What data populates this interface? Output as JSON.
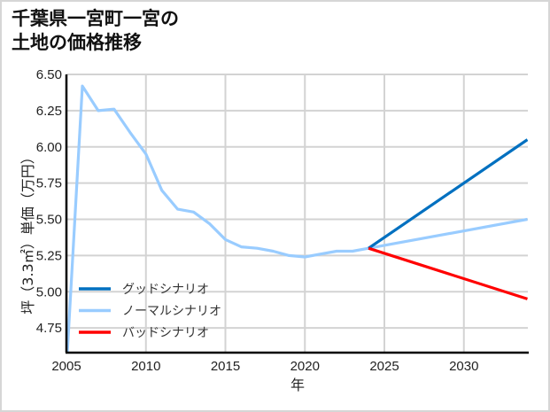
{
  "title_lines": [
    "千葉県一宮町一宮の",
    "土地の価格推移"
  ],
  "chart_data": {
    "type": "line",
    "title": "千葉県一宮町一宮の土地の価格推移",
    "xlabel": "年",
    "ylabel": "坪（3.3㎡）単価（万円）",
    "xlim": [
      2005,
      2034
    ],
    "ylim": [
      4.6,
      6.5
    ],
    "x_ticks": [
      2005,
      2010,
      2015,
      2020,
      2025,
      2030
    ],
    "x_tick_labels": [
      "2005",
      "2010",
      "2015",
      "2020",
      "2025",
      "2030"
    ],
    "y_ticks": [
      4.75,
      5.0,
      5.25,
      5.5,
      5.75,
      6.0,
      6.25,
      6.5
    ],
    "y_tick_labels": [
      "4.75",
      "5.00",
      "5.25",
      "5.50",
      "5.75",
      "6.00",
      "6.25",
      "6.50"
    ],
    "grid": true,
    "legend_position": "lower left",
    "series": [
      {
        "name": "グッドシナリオ",
        "color": "#0070c0",
        "x": [
          2024,
          2034
        ],
        "values": [
          5.3,
          6.05
        ]
      },
      {
        "name": "ノーマルシナリオ",
        "color": "#99ccff",
        "x": [
          2005,
          2006,
          2007,
          2008,
          2009,
          2010,
          2011,
          2012,
          2013,
          2014,
          2015,
          2016,
          2017,
          2018,
          2019,
          2020,
          2021,
          2022,
          2023,
          2024,
          2034
        ],
        "values": [
          4.47,
          6.42,
          6.25,
          6.26,
          6.1,
          5.95,
          5.7,
          5.57,
          5.55,
          5.47,
          5.36,
          5.31,
          5.3,
          5.28,
          5.25,
          5.24,
          5.26,
          5.28,
          5.28,
          5.3,
          5.5
        ]
      },
      {
        "name": "バッドシナリオ",
        "color": "#ff0000",
        "x": [
          2024,
          2034
        ],
        "values": [
          5.3,
          4.95
        ]
      }
    ]
  },
  "colors": {
    "grid": "#d3d3d3",
    "axis": "#000000",
    "frame": "#d6d6d6"
  }
}
